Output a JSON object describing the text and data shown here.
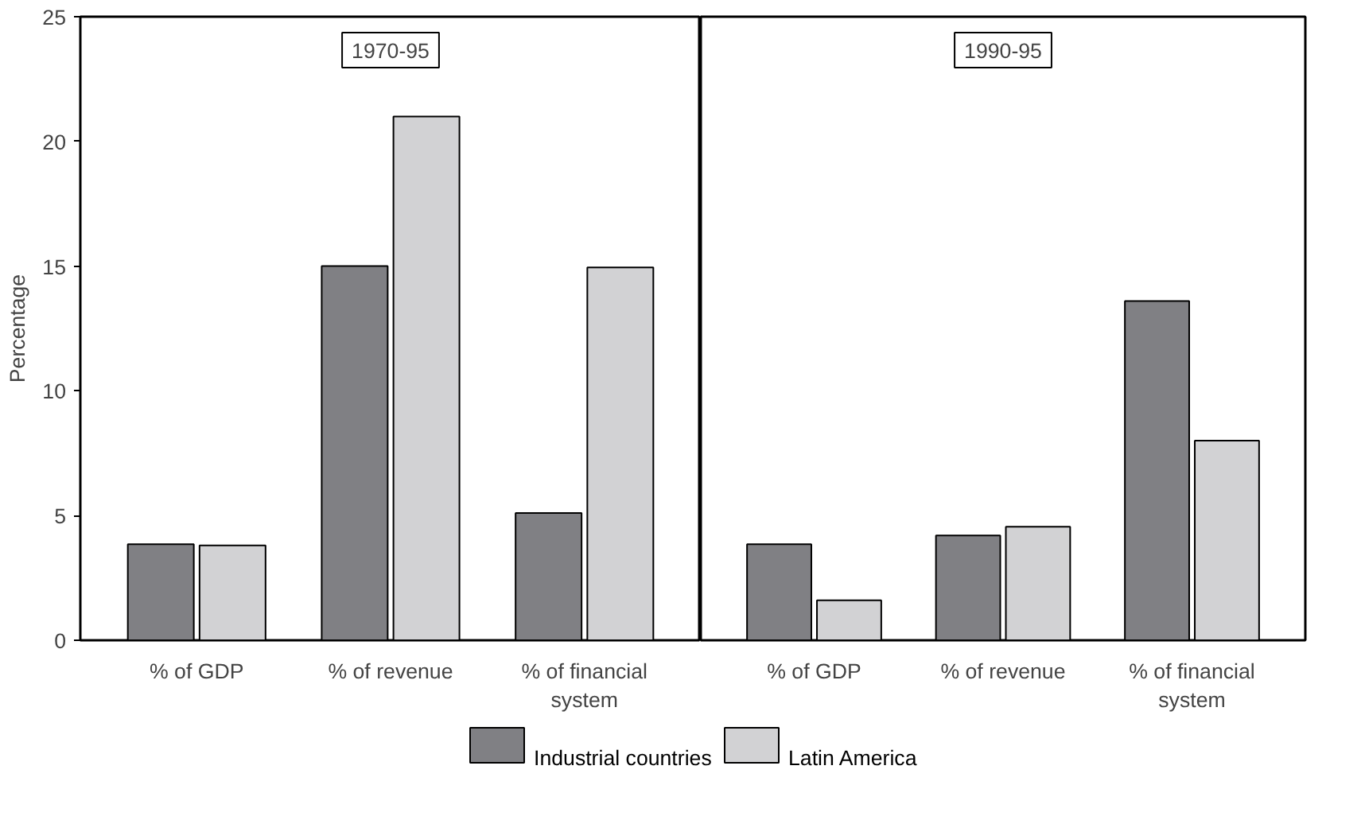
{
  "chart_data": [
    {
      "type": "bar",
      "annotations": [
        "1970-95"
      ],
      "ylabel": "Percentage",
      "categories": [
        "% of GDP",
        "% of revenue",
        "% of financial system"
      ],
      "ylim": [
        0,
        25
      ],
      "yticks": [
        0,
        5,
        10,
        15,
        20,
        25
      ],
      "grid": false,
      "legend": "bottom",
      "series": [
        {
          "name": "Industrial countries",
          "color": "#808084",
          "values": [
            3.85,
            15,
            5.1
          ]
        },
        {
          "name": "Latin America",
          "color": "#d2d2d4",
          "values": [
            3.8,
            21,
            14.95
          ]
        }
      ]
    },
    {
      "type": "bar",
      "annotations": [
        "1990-95"
      ],
      "categories": [
        "% of GDP",
        "% of revenue",
        "% of financial system"
      ],
      "ylim": [
        0,
        25
      ],
      "yticks": [
        0,
        5,
        10,
        15,
        20,
        25
      ],
      "grid": false,
      "tick_labels": "x",
      "series": [
        {
          "color": "#808084",
          "values": [
            3.85,
            4.2,
            13.6
          ]
        },
        {
          "color": "#d2d2d4",
          "values": [
            1.6,
            4.55,
            8.0
          ]
        }
      ]
    }
  ]
}
